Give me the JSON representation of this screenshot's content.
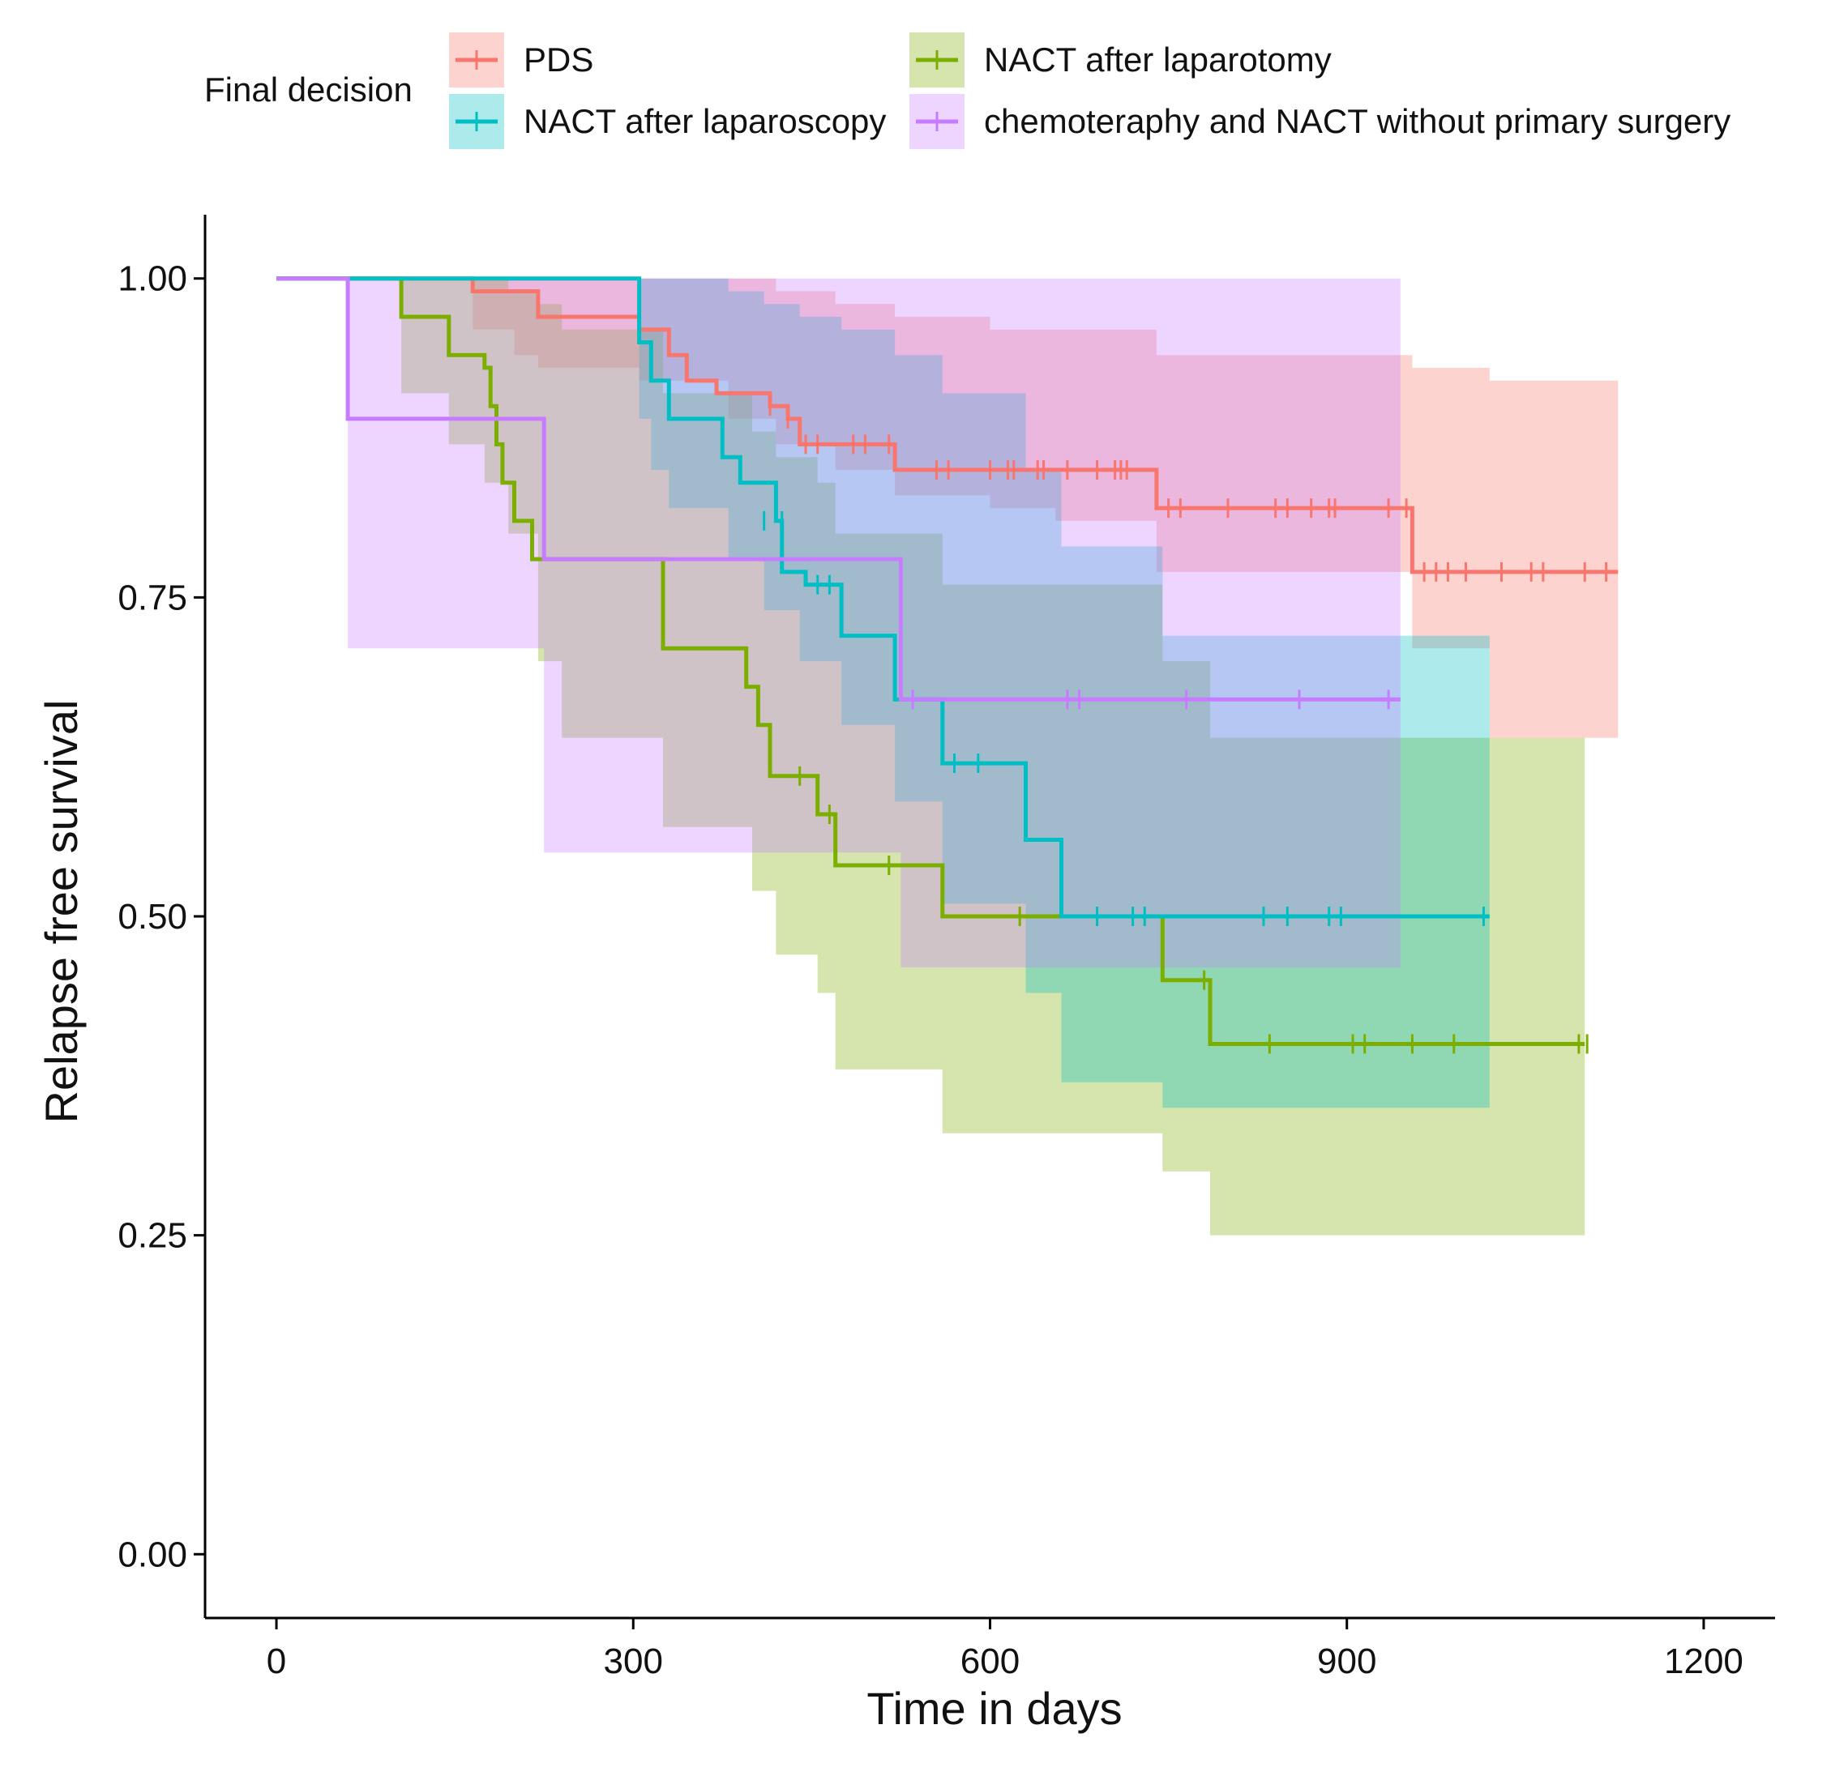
{
  "chart_data": {
    "type": "line",
    "subtype": "kaplan-meier",
    "title": "",
    "xlabel": "Time in days",
    "ylabel": "Relapse free survival",
    "xlim": [
      -60,
      1260
    ],
    "ylim": [
      -0.05,
      1.05
    ],
    "xticks": [
      0,
      300,
      600,
      900,
      1200
    ],
    "xtick_labels": [
      "0",
      "300",
      "600",
      "900",
      "1200"
    ],
    "yticks": [
      0,
      0.25,
      0.5,
      0.75,
      1.0
    ],
    "ytick_labels": [
      "0.00",
      "0.25",
      "0.50",
      "0.75",
      "1.00"
    ],
    "grid": false,
    "legend": {
      "title": "Final decision",
      "position": "top"
    },
    "series": [
      {
        "name": "PDS",
        "color": "#F8766D",
        "steps": [
          [
            0,
            1.0
          ],
          [
            165,
            0.99
          ],
          [
            220,
            0.97
          ],
          [
            305,
            0.96
          ],
          [
            330,
            0.94
          ],
          [
            345,
            0.92
          ],
          [
            370,
            0.91
          ],
          [
            415,
            0.9
          ],
          [
            430,
            0.89
          ],
          [
            440,
            0.87
          ],
          [
            520,
            0.85
          ],
          [
            740,
            0.82
          ],
          [
            955,
            0.77
          ],
          [
            1128,
            0.77
          ]
        ],
        "ci": [
          [
            0,
            1.0,
            1.0
          ],
          [
            165,
            1.0,
            0.96
          ],
          [
            200,
            1.0,
            0.94
          ],
          [
            220,
            1.0,
            0.93
          ],
          [
            305,
            1.0,
            0.92
          ],
          [
            380,
            1.0,
            0.89
          ],
          [
            420,
            0.99,
            0.87
          ],
          [
            470,
            0.98,
            0.85
          ],
          [
            520,
            0.97,
            0.83
          ],
          [
            600,
            0.96,
            0.82
          ],
          [
            655,
            0.96,
            0.81
          ],
          [
            740,
            0.94,
            0.77
          ],
          [
            955,
            0.93,
            0.71
          ],
          [
            1020,
            0.92,
            0.64
          ],
          [
            1128,
            0.92,
            0.64
          ]
        ],
        "censors": [
          [
            415,
            0.9
          ],
          [
            430,
            0.89
          ],
          [
            445,
            0.87
          ],
          [
            455,
            0.87
          ],
          [
            485,
            0.87
          ],
          [
            495,
            0.87
          ],
          [
            515,
            0.87
          ],
          [
            555,
            0.85
          ],
          [
            565,
            0.85
          ],
          [
            600,
            0.85
          ],
          [
            615,
            0.85
          ],
          [
            620,
            0.85
          ],
          [
            640,
            0.85
          ],
          [
            645,
            0.85
          ],
          [
            665,
            0.85
          ],
          [
            690,
            0.85
          ],
          [
            705,
            0.85
          ],
          [
            710,
            0.85
          ],
          [
            715,
            0.85
          ],
          [
            750,
            0.82
          ],
          [
            760,
            0.82
          ],
          [
            800,
            0.82
          ],
          [
            840,
            0.82
          ],
          [
            850,
            0.82
          ],
          [
            870,
            0.82
          ],
          [
            885,
            0.82
          ],
          [
            890,
            0.82
          ],
          [
            935,
            0.82
          ],
          [
            950,
            0.82
          ],
          [
            965,
            0.77
          ],
          [
            975,
            0.77
          ],
          [
            985,
            0.77
          ],
          [
            1000,
            0.77
          ],
          [
            1030,
            0.77
          ],
          [
            1055,
            0.77
          ],
          [
            1065,
            0.77
          ],
          [
            1100,
            0.77
          ],
          [
            1118,
            0.77
          ]
        ]
      },
      {
        "name": "NACT after laparotomy",
        "color": "#7CAE00",
        "steps": [
          [
            0,
            1.0
          ],
          [
            105,
            0.97
          ],
          [
            145,
            0.94
          ],
          [
            175,
            0.93
          ],
          [
            180,
            0.9
          ],
          [
            185,
            0.87
          ],
          [
            190,
            0.84
          ],
          [
            200,
            0.81
          ],
          [
            215,
            0.78
          ],
          [
            325,
            0.71
          ],
          [
            395,
            0.68
          ],
          [
            405,
            0.65
          ],
          [
            415,
            0.61
          ],
          [
            455,
            0.58
          ],
          [
            470,
            0.54
          ],
          [
            560,
            0.5
          ],
          [
            745,
            0.45
          ],
          [
            785,
            0.4
          ],
          [
            1100,
            0.4
          ]
        ],
        "ci": [
          [
            0,
            1.0,
            1.0
          ],
          [
            105,
            1.0,
            0.91
          ],
          [
            145,
            1.0,
            0.87
          ],
          [
            175,
            1.0,
            0.84
          ],
          [
            195,
            0.99,
            0.8
          ],
          [
            220,
            0.98,
            0.7
          ],
          [
            240,
            0.96,
            0.64
          ],
          [
            325,
            0.91,
            0.57
          ],
          [
            400,
            0.88,
            0.52
          ],
          [
            420,
            0.86,
            0.47
          ],
          [
            455,
            0.84,
            0.44
          ],
          [
            470,
            0.8,
            0.38
          ],
          [
            560,
            0.76,
            0.33
          ],
          [
            745,
            0.7,
            0.3
          ],
          [
            785,
            0.64,
            0.25
          ],
          [
            1100,
            0.64,
            0.25
          ]
        ],
        "censors": [
          [
            440,
            0.61
          ],
          [
            465,
            0.58
          ],
          [
            515,
            0.54
          ],
          [
            625,
            0.5
          ],
          [
            780,
            0.45
          ],
          [
            835,
            0.4
          ],
          [
            905,
            0.4
          ],
          [
            915,
            0.4
          ],
          [
            955,
            0.4
          ],
          [
            990,
            0.4
          ],
          [
            1095,
            0.4
          ],
          [
            1102,
            0.4
          ]
        ]
      },
      {
        "name": "NACT after laparoscopy",
        "color": "#00BFC4",
        "steps": [
          [
            0,
            1.0
          ],
          [
            305,
            0.95
          ],
          [
            315,
            0.92
          ],
          [
            330,
            0.89
          ],
          [
            375,
            0.86
          ],
          [
            390,
            0.84
          ],
          [
            420,
            0.81
          ],
          [
            425,
            0.77
          ],
          [
            445,
            0.76
          ],
          [
            475,
            0.72
          ],
          [
            520,
            0.67
          ],
          [
            560,
            0.62
          ],
          [
            630,
            0.56
          ],
          [
            660,
            0.5
          ],
          [
            1020,
            0.5
          ]
        ],
        "ci": [
          [
            0,
            1.0,
            1.0
          ],
          [
            305,
            1.0,
            0.89
          ],
          [
            315,
            1.0,
            0.85
          ],
          [
            330,
            1.0,
            0.82
          ],
          [
            380,
            0.99,
            0.78
          ],
          [
            410,
            0.98,
            0.74
          ],
          [
            440,
            0.97,
            0.7
          ],
          [
            475,
            0.96,
            0.65
          ],
          [
            520,
            0.94,
            0.59
          ],
          [
            560,
            0.91,
            0.51
          ],
          [
            630,
            0.85,
            0.44
          ],
          [
            660,
            0.79,
            0.37
          ],
          [
            745,
            0.72,
            0.35
          ],
          [
            1020,
            0.72,
            0.35
          ]
        ],
        "censors": [
          [
            410,
            0.81
          ],
          [
            425,
            0.81
          ],
          [
            455,
            0.76
          ],
          [
            465,
            0.76
          ],
          [
            570,
            0.62
          ],
          [
            590,
            0.62
          ],
          [
            690,
            0.5
          ],
          [
            720,
            0.5
          ],
          [
            730,
            0.5
          ],
          [
            830,
            0.5
          ],
          [
            850,
            0.5
          ],
          [
            885,
            0.5
          ],
          [
            895,
            0.5
          ],
          [
            1015,
            0.5
          ]
        ]
      },
      {
        "name": "chemoteraphy and NACT without primary surgery",
        "color": "#C77CFF",
        "steps": [
          [
            0,
            1.0
          ],
          [
            60,
            0.89
          ],
          [
            225,
            0.78
          ],
          [
            525,
            0.67
          ],
          [
            945,
            0.67
          ]
        ],
        "ci": [
          [
            0,
            1.0,
            1.0
          ],
          [
            60,
            1.0,
            0.71
          ],
          [
            225,
            1.0,
            0.55
          ],
          [
            525,
            1.0,
            0.46
          ],
          [
            945,
            1.0,
            0.46
          ]
        ],
        "censors": [
          [
            535,
            0.67
          ],
          [
            665,
            0.67
          ],
          [
            675,
            0.67
          ],
          [
            765,
            0.67
          ],
          [
            860,
            0.67
          ],
          [
            935,
            0.67
          ]
        ]
      }
    ]
  }
}
